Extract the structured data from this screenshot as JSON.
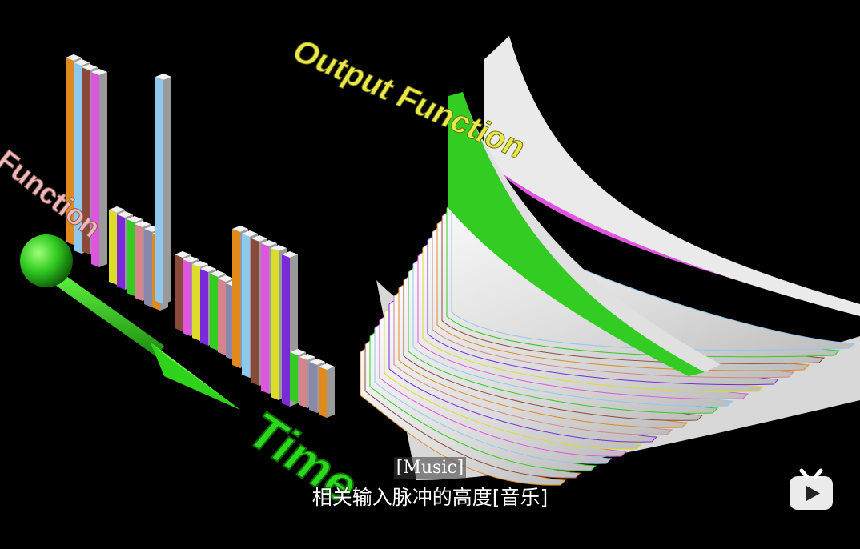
{
  "scene": {
    "output_label": "Output Function",
    "input_label": "Function",
    "time_label": "Time"
  },
  "subtitles": {
    "english": "[Music]",
    "chinese": "相关输入脉冲的高度[音乐]"
  },
  "logo": {
    "icon": "tv-logo-icon"
  },
  "colors": {
    "background": "#000000",
    "output_label": "#e8e84a",
    "input_label": "#f0b8b8",
    "time_arrow": "#33dd22",
    "ribbon": "#e6e6e6",
    "logo": "#ffffff"
  }
}
